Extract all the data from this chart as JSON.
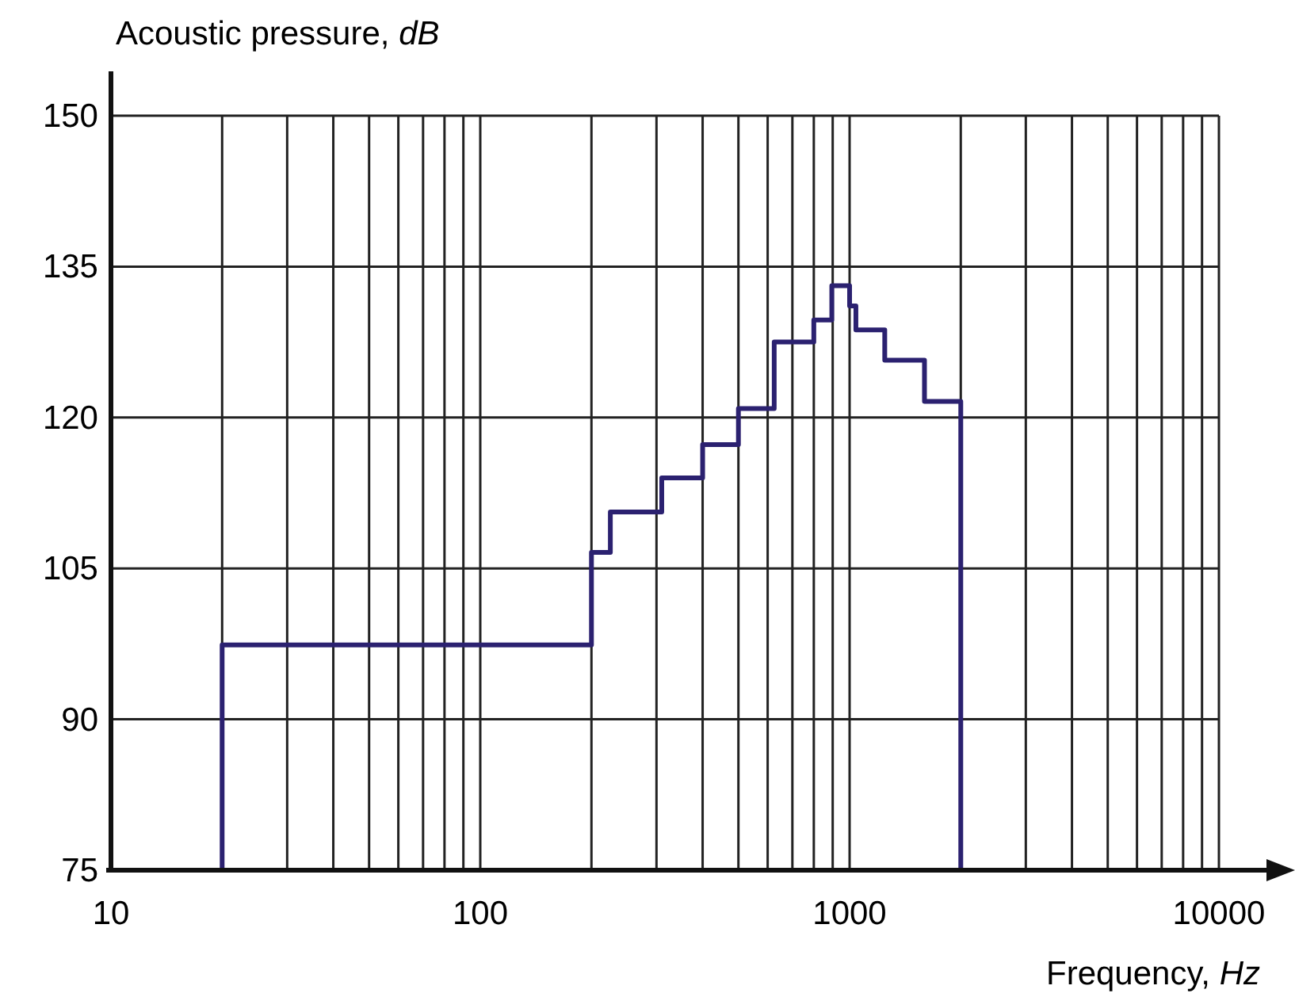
{
  "chart_data": {
    "type": "step",
    "xlabel": "Frequency, Hz",
    "ylabel": "Acoustic pressure, dB",
    "log": "x",
    "grid": true,
    "color": "#2b2170",
    "x": [
      20,
      20,
      200,
      225,
      310,
      400,
      500,
      625,
      800,
      895,
      1000,
      1040,
      1245,
      1595,
      2000
    ],
    "values": [
      75,
      97.4,
      106.6,
      110.6,
      114.0,
      117.3,
      120.9,
      127.5,
      129.7,
      133.1,
      131.1,
      128.7,
      125.7,
      121.6,
      75
    ],
    "xlim": [
      10,
      10000
    ],
    "ylim": [
      75,
      150
    ],
    "xticks": [
      10,
      {
        "value": 20,
        "label": null
      },
      {
        "value": 30,
        "label": null
      },
      {
        "value": 40,
        "label": null
      },
      {
        "value": 50,
        "label": null
      },
      {
        "value": 60,
        "label": null
      },
      {
        "value": 70,
        "label": null
      },
      {
        "value": 80,
        "label": null
      },
      {
        "value": 90,
        "label": null
      },
      100,
      {
        "value": 200,
        "label": null
      },
      {
        "value": 300,
        "label": null
      },
      {
        "value": 400,
        "label": null
      },
      {
        "value": 500,
        "label": null
      },
      {
        "value": 600,
        "label": null
      },
      {
        "value": 700,
        "label": null
      },
      {
        "value": 800,
        "label": null
      },
      {
        "value": 900,
        "label": null
      },
      1000,
      {
        "value": 2000,
        "label": null
      },
      {
        "value": 3000,
        "label": null
      },
      {
        "value": 4000,
        "label": null
      },
      {
        "value": 5000,
        "label": null
      },
      {
        "value": 6000,
        "label": null
      },
      {
        "value": 7000,
        "label": null
      },
      {
        "value": 8000,
        "label": null
      },
      {
        "value": 9000,
        "label": null
      },
      10000
    ],
    "yticks": [
      75,
      90,
      105,
      120,
      135,
      150
    ]
  }
}
